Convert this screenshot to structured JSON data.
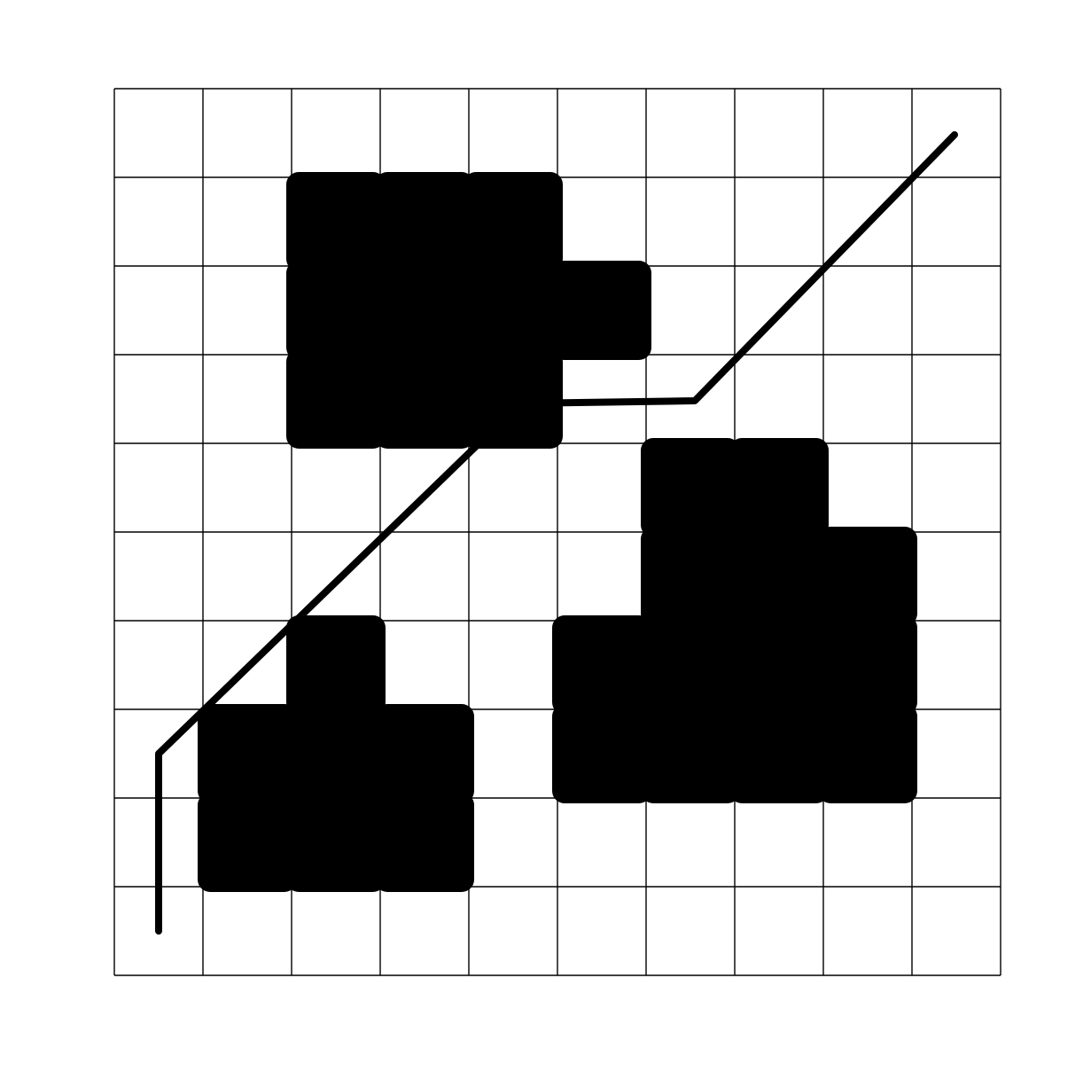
{
  "diagram": {
    "type": "grid-path-planning",
    "grid": {
      "cols": 10,
      "rows": 10,
      "line_color": "#000000"
    },
    "obstacle_color": "#000000",
    "path_color": "#000000",
    "obstacles": [
      {
        "id": "upper-left-obstacle",
        "cells": [
          [
            2,
            1
          ],
          [
            3,
            1
          ],
          [
            4,
            1
          ],
          [
            2,
            2
          ],
          [
            3,
            2
          ],
          [
            4,
            2
          ],
          [
            5,
            2
          ],
          [
            2,
            3
          ],
          [
            3,
            3
          ],
          [
            4,
            3
          ]
        ]
      },
      {
        "id": "lower-left-obstacle",
        "cells": [
          [
            2,
            6
          ],
          [
            1,
            7
          ],
          [
            2,
            7
          ],
          [
            3,
            7
          ],
          [
            1,
            8
          ],
          [
            2,
            8
          ],
          [
            3,
            8
          ]
        ]
      },
      {
        "id": "right-obstacle",
        "cells": [
          [
            6,
            4
          ],
          [
            7,
            4
          ],
          [
            6,
            5
          ],
          [
            7,
            5
          ],
          [
            8,
            5
          ],
          [
            5,
            6
          ],
          [
            6,
            6
          ],
          [
            7,
            6
          ],
          [
            8,
            6
          ],
          [
            5,
            7
          ],
          [
            6,
            7
          ],
          [
            7,
            7
          ],
          [
            8,
            7
          ]
        ]
      }
    ],
    "path": {
      "points": [
        [
          0.5,
          9.5
        ],
        [
          0.5,
          7.5
        ],
        [
          4.58,
          3.55
        ],
        [
          6.55,
          3.52
        ],
        [
          9.48,
          0.52
        ]
      ]
    }
  }
}
